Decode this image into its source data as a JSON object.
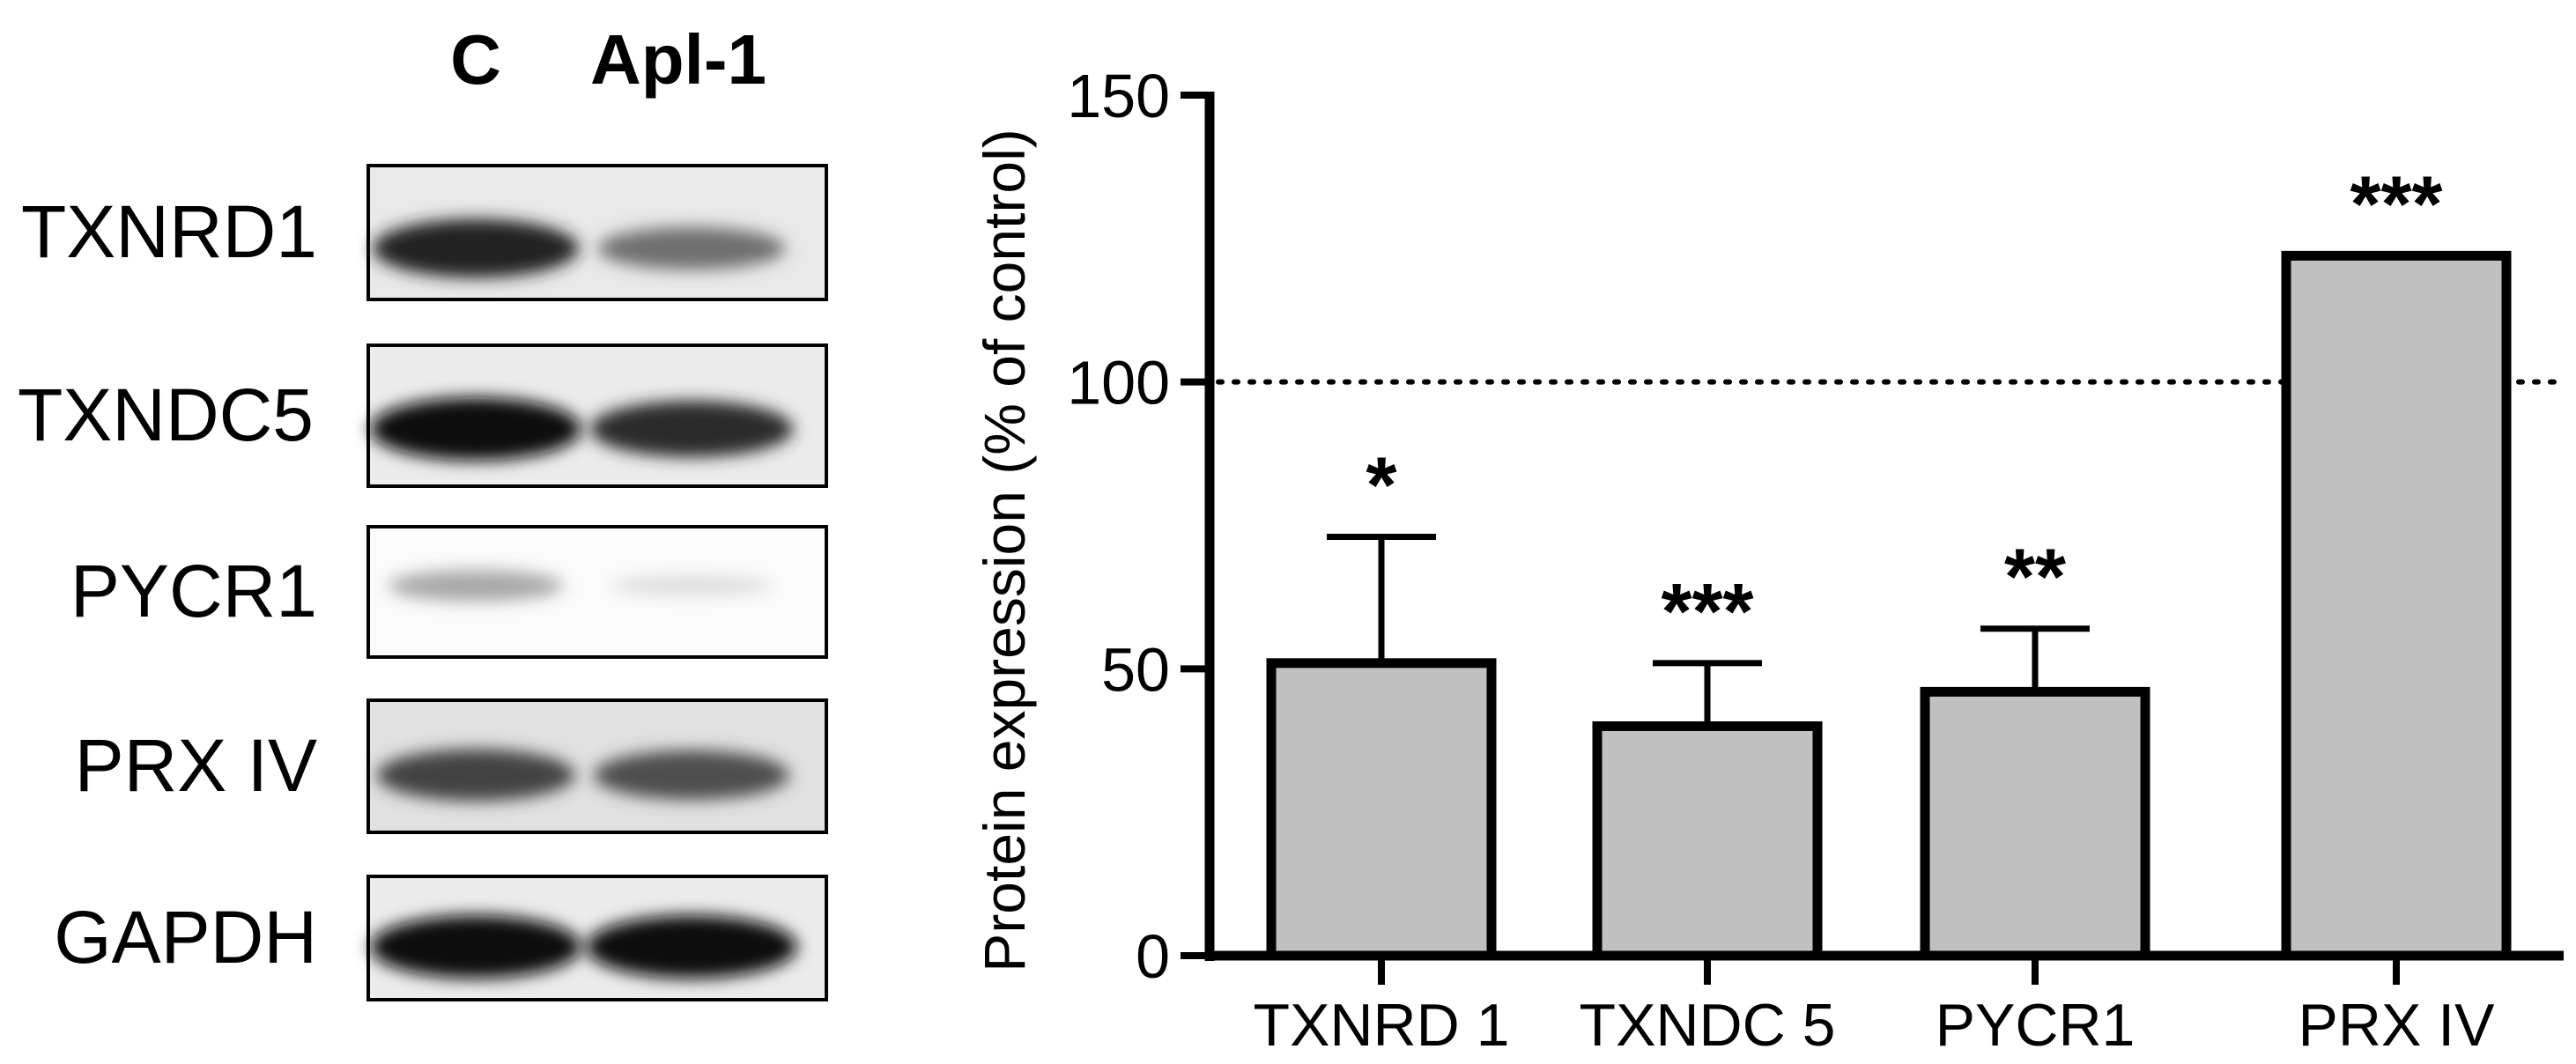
{
  "western_blot": {
    "lanes": [
      "C",
      "Apl-1"
    ],
    "proteins": [
      "TXNRD1",
      "TXNDC5",
      "PYCR1",
      "PRX IV",
      "GAPDH"
    ],
    "band_intensity": [
      {
        "control": 0.9,
        "treated": 0.55
      },
      {
        "control": 1.0,
        "treated": 0.85
      },
      {
        "control": 0.3,
        "treated": 0.06
      },
      {
        "control": 0.75,
        "treated": 0.7
      },
      {
        "control": 1.0,
        "treated": 1.0
      }
    ]
  },
  "chart_data": {
    "type": "bar",
    "categories": [
      "TXNRD 1",
      "TXNDC 5",
      "PYCR1",
      "PRX IV"
    ],
    "values": [
      51,
      40,
      46,
      122
    ],
    "errors": [
      22,
      11,
      11,
      0
    ],
    "significance": [
      "*",
      "***",
      "**",
      "***"
    ],
    "title": "",
    "xlabel": "",
    "ylabel": "Protein expression (% of control)",
    "ylim": [
      0,
      150
    ],
    "yticks": [
      0,
      50,
      100,
      150
    ],
    "reference_line": 100,
    "grid": false,
    "legend": "none",
    "colors": {
      "bar_fill": "#c0c0c0",
      "bar_stroke": "#000000",
      "axis": "#000000"
    }
  }
}
